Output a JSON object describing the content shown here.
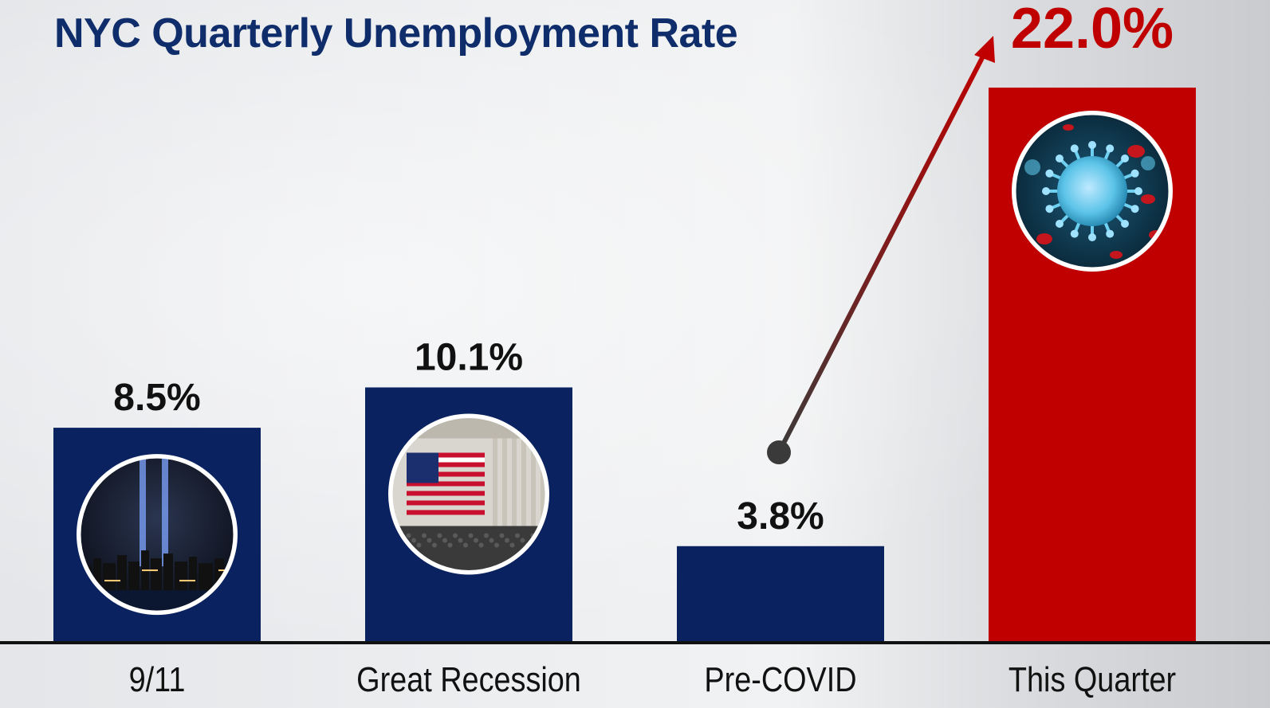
{
  "chart_data": {
    "type": "bar",
    "title": "NYC Quarterly Unemployment Rate",
    "categories": [
      "9/11",
      "Great Recession",
      "Pre-COVID",
      "This Quarter"
    ],
    "values": [
      8.5,
      10.1,
      3.8,
      22.0
    ],
    "value_labels": [
      "8.5%",
      "10.1%",
      "3.8%",
      "22.0%"
    ],
    "colors": [
      "#0a2260",
      "#0a2260",
      "#0a2260",
      "#c00000"
    ],
    "highlight_label_color": "#c00000",
    "icons": [
      "tribute-in-light-icon",
      "stock-exchange-flag-icon",
      null,
      "coronavirus-icon"
    ],
    "annotation": "arrow-from-pre-covid-to-this-quarter",
    "ylim": [
      0,
      22.0
    ],
    "xlabel": "",
    "ylabel": "",
    "grid": false,
    "legend": "none"
  }
}
